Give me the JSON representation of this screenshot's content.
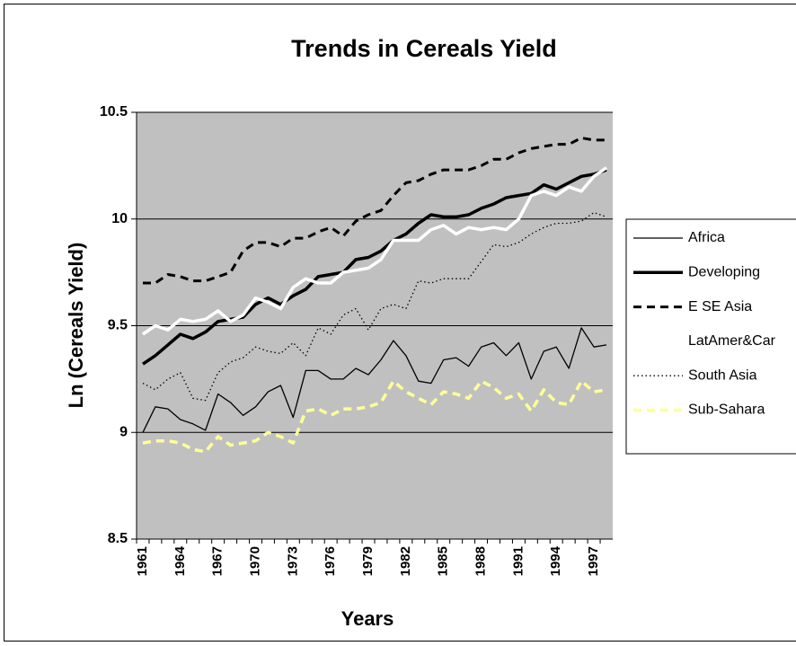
{
  "chart_data": {
    "type": "line",
    "title": "Trends in Cereals Yield",
    "x_label": "Years",
    "y_label": "Ln (Cereals Yield)",
    "categories": [
      "1961",
      null,
      null,
      "1964",
      null,
      null,
      "1967",
      null,
      null,
      "1970",
      null,
      null,
      "1973",
      null,
      null,
      "1976",
      null,
      null,
      "1979",
      null,
      null,
      "1982",
      null,
      null,
      "1985",
      null,
      null,
      "1988",
      null,
      null,
      "1991",
      null,
      null,
      "1994",
      null,
      null,
      "1997",
      null
    ],
    "ylim": [
      8.5,
      10.5
    ],
    "yticks": [
      8.5,
      9,
      9.5,
      10,
      10.5
    ],
    "grid": true,
    "legend": "right",
    "plot_background": "#c0c0c0",
    "series": [
      {
        "name": "Africa",
        "color": "#000000",
        "width": 1.3,
        "dash": "solid",
        "values": [
          9.0,
          9.12,
          9.11,
          9.06,
          9.04,
          9.01,
          9.18,
          9.14,
          9.08,
          9.12,
          9.19,
          9.22,
          9.07,
          9.29,
          9.29,
          9.25,
          9.25,
          9.3,
          9.27,
          9.34,
          9.43,
          9.36,
          9.24,
          9.23,
          9.34,
          9.35,
          9.31,
          9.4,
          9.42,
          9.36,
          9.42,
          9.25,
          9.38,
          9.4,
          9.3,
          9.49,
          9.4,
          9.41
        ]
      },
      {
        "name": "Developing",
        "color": "#000000",
        "width": 3.5,
        "dash": "solid",
        "values": [
          9.32,
          9.36,
          9.41,
          9.46,
          9.44,
          9.47,
          9.52,
          9.53,
          9.54,
          9.6,
          9.63,
          9.6,
          9.64,
          9.67,
          9.73,
          9.74,
          9.75,
          9.81,
          9.82,
          9.85,
          9.9,
          9.93,
          9.98,
          10.02,
          10.01,
          10.01,
          10.02,
          10.05,
          10.07,
          10.1,
          10.11,
          10.12,
          10.16,
          10.14,
          10.17,
          10.2,
          10.21,
          10.23
        ]
      },
      {
        "name": "E SE Asia",
        "color": "#000000",
        "width": 3,
        "dash": "dashed",
        "values": [
          9.7,
          9.7,
          9.74,
          9.73,
          9.71,
          9.71,
          9.73,
          9.75,
          9.85,
          9.89,
          9.89,
          9.87,
          9.91,
          9.91,
          9.94,
          9.96,
          9.92,
          9.99,
          10.02,
          10.04,
          10.11,
          10.17,
          10.18,
          10.21,
          10.23,
          10.23,
          10.23,
          10.25,
          10.28,
          10.28,
          10.31,
          10.33,
          10.34,
          10.35,
          10.35,
          10.38,
          10.37,
          10.37
        ]
      },
      {
        "name": "LatAmer&Car",
        "color": "#ffffff",
        "width": 3.5,
        "dash": "solid",
        "values": [
          9.46,
          9.5,
          9.48,
          9.53,
          9.52,
          9.53,
          9.57,
          9.52,
          9.55,
          9.63,
          9.61,
          9.58,
          9.68,
          9.72,
          9.7,
          9.7,
          9.75,
          9.76,
          9.77,
          9.81,
          9.9,
          9.9,
          9.9,
          9.95,
          9.97,
          9.93,
          9.96,
          9.95,
          9.96,
          9.95,
          10.0,
          10.11,
          10.13,
          10.11,
          10.15,
          10.13,
          10.2,
          10.24
        ]
      },
      {
        "name": "South Asia",
        "color": "#000000",
        "width": 1.3,
        "dash": "dotted",
        "values": [
          9.23,
          9.2,
          9.25,
          9.28,
          9.16,
          9.15,
          9.28,
          9.33,
          9.35,
          9.4,
          9.38,
          9.37,
          9.42,
          9.36,
          9.49,
          9.46,
          9.55,
          9.58,
          9.48,
          9.58,
          9.6,
          9.58,
          9.71,
          9.7,
          9.72,
          9.72,
          9.72,
          9.8,
          9.88,
          9.87,
          9.89,
          9.93,
          9.96,
          9.98,
          9.98,
          9.99,
          10.03,
          10.01
        ]
      },
      {
        "name": "Sub-Sahara",
        "color": "#ffff99",
        "width": 3.5,
        "dash": "dashed",
        "values": [
          8.95,
          8.96,
          8.96,
          8.95,
          8.92,
          8.91,
          8.98,
          8.94,
          8.95,
          8.96,
          9.0,
          8.98,
          8.95,
          9.1,
          9.11,
          9.08,
          9.11,
          9.11,
          9.12,
          9.14,
          9.24,
          9.19,
          9.16,
          9.13,
          9.19,
          9.18,
          9.16,
          9.24,
          9.21,
          9.16,
          9.18,
          9.1,
          9.2,
          9.14,
          9.13,
          9.24,
          9.19,
          9.2
        ]
      }
    ]
  }
}
